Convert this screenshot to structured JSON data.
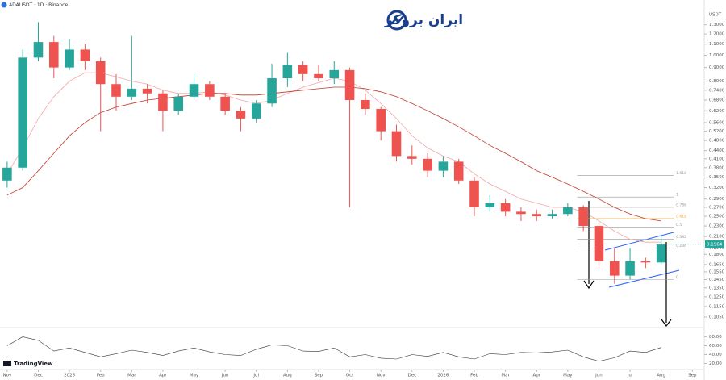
{
  "header": {
    "symbol": "ADAUSDT · 1D · Binance",
    "currency": "USDT",
    "logo": "ایران بروکر",
    "brand": "TradingView"
  },
  "chart_data": {
    "type": "candlestick",
    "x": [
      0,
      0.5,
      1,
      1.5,
      2,
      2.5,
      3,
      3.5,
      4,
      4.5,
      5,
      5.5,
      6,
      6.5,
      7,
      7.5,
      8,
      8.5,
      9,
      9.5,
      10,
      10.5,
      11,
      11.5,
      12,
      12.5,
      13,
      13.5,
      14,
      14.5,
      15,
      15.5,
      16,
      16.5,
      17,
      17.5,
      18,
      18.5,
      19,
      19.5,
      20,
      20.5,
      21
    ],
    "open": [
      0.34,
      0.38,
      0.98,
      1.12,
      0.9,
      1.05,
      0.95,
      0.78,
      0.7,
      0.75,
      0.72,
      0.62,
      0.7,
      0.78,
      0.7,
      0.62,
      0.58,
      0.66,
      0.82,
      0.92,
      0.85,
      0.82,
      0.88,
      0.68,
      0.63,
      0.52,
      0.42,
      0.41,
      0.37,
      0.4,
      0.34,
      0.27,
      0.28,
      0.26,
      0.255,
      0.25,
      0.255,
      0.27,
      0.23,
      0.17,
      0.15,
      0.17,
      0.168
    ],
    "high": [
      0.4,
      1.05,
      1.33,
      1.18,
      1.15,
      1.1,
      0.98,
      0.85,
      1.18,
      0.78,
      0.74,
      0.72,
      0.85,
      0.8,
      0.72,
      0.64,
      0.68,
      0.93,
      1.02,
      0.95,
      0.92,
      0.95,
      0.9,
      0.72,
      0.64,
      0.55,
      0.46,
      0.43,
      0.42,
      0.41,
      0.35,
      0.3,
      0.29,
      0.27,
      0.265,
      0.265,
      0.28,
      0.275,
      0.235,
      0.19,
      0.19,
      0.175,
      0.21
    ],
    "low": [
      0.32,
      0.37,
      0.95,
      0.82,
      0.88,
      0.88,
      0.52,
      0.62,
      0.68,
      0.66,
      0.52,
      0.6,
      0.68,
      0.68,
      0.6,
      0.52,
      0.56,
      0.64,
      0.76,
      0.8,
      0.8,
      0.78,
      0.27,
      0.6,
      0.48,
      0.4,
      0.39,
      0.35,
      0.35,
      0.33,
      0.25,
      0.26,
      0.25,
      0.24,
      0.24,
      0.245,
      0.25,
      0.22,
      0.16,
      0.14,
      0.145,
      0.16,
      0.165
    ],
    "close": [
      0.38,
      0.98,
      1.12,
      0.9,
      1.05,
      0.95,
      0.78,
      0.7,
      0.75,
      0.72,
      0.62,
      0.7,
      0.78,
      0.7,
      0.62,
      0.58,
      0.66,
      0.82,
      0.92,
      0.85,
      0.82,
      0.88,
      0.68,
      0.63,
      0.52,
      0.42,
      0.41,
      0.37,
      0.4,
      0.34,
      0.27,
      0.28,
      0.26,
      0.255,
      0.25,
      0.255,
      0.27,
      0.23,
      0.17,
      0.15,
      0.17,
      0.168,
      0.196
    ],
    "up_color": "#26a69a",
    "down_color": "#ef5350",
    "overlays": [
      {
        "color": "#f4a7a7",
        "values": [
          0.36,
          0.45,
          0.58,
          0.7,
          0.8,
          0.86,
          0.86,
          0.83,
          0.8,
          0.78,
          0.74,
          0.72,
          0.72,
          0.73,
          0.71,
          0.68,
          0.66,
          0.68,
          0.72,
          0.76,
          0.79,
          0.82,
          0.8,
          0.74,
          0.66,
          0.58,
          0.5,
          0.45,
          0.42,
          0.4,
          0.36,
          0.33,
          0.31,
          0.29,
          0.28,
          0.27,
          0.27,
          0.26,
          0.24,
          0.22,
          0.205,
          0.2,
          0.2
        ]
      },
      {
        "color": "#c0392b",
        "values": [
          0.3,
          0.32,
          0.37,
          0.43,
          0.5,
          0.56,
          0.61,
          0.64,
          0.66,
          0.68,
          0.69,
          0.7,
          0.71,
          0.72,
          0.72,
          0.71,
          0.71,
          0.72,
          0.73,
          0.74,
          0.75,
          0.76,
          0.76,
          0.75,
          0.73,
          0.7,
          0.66,
          0.62,
          0.58,
          0.54,
          0.5,
          0.46,
          0.43,
          0.4,
          0.37,
          0.35,
          0.33,
          0.31,
          0.29,
          0.27,
          0.255,
          0.245,
          0.24
        ]
      }
    ],
    "log_scale": true,
    "xlim": [
      -0.23,
      22.2
    ],
    "xticks": [
      {
        "value": 0,
        "label": "Nov"
      },
      {
        "value": 1,
        "label": "Dec"
      },
      {
        "value": 2,
        "label": "2025"
      },
      {
        "value": 3,
        "label": "Feb"
      },
      {
        "value": 4,
        "label": "Mar"
      },
      {
        "value": 5,
        "label": "Apr"
      },
      {
        "value": 6,
        "label": "May"
      },
      {
        "value": 7,
        "label": "Jun"
      },
      {
        "value": 8,
        "label": "Jul"
      },
      {
        "value": 9,
        "label": "Aug"
      },
      {
        "value": 10,
        "label": "Sep"
      },
      {
        "value": 11,
        "label": "Oct"
      },
      {
        "value": 12,
        "label": "Nov"
      },
      {
        "value": 13,
        "label": "Dec"
      },
      {
        "value": 14,
        "label": "2026"
      },
      {
        "value": 15,
        "label": "Feb"
      },
      {
        "value": 16,
        "label": "Mar"
      },
      {
        "value": 17,
        "label": "Apr"
      },
      {
        "value": 18,
        "label": "May"
      },
      {
        "value": 19,
        "label": "Jun"
      },
      {
        "value": 20,
        "label": "Jul"
      },
      {
        "value": 21,
        "label": "Aug"
      },
      {
        "value": 22,
        "label": "Sep"
      }
    ],
    "ylim": [
      0.1,
      1.4
    ],
    "yticks": [
      {
        "value": 1.3,
        "label": "1.3000"
      },
      {
        "value": 1.2,
        "label": "1.2000"
      },
      {
        "value": 1.1,
        "label": "1.1000"
      },
      {
        "value": 1.0,
        "label": "1.0000"
      },
      {
        "value": 0.9,
        "label": "0.9000"
      },
      {
        "value": 0.8,
        "label": "0.8000"
      },
      {
        "value": 0.74,
        "label": "0.7400"
      },
      {
        "value": 0.68,
        "label": "0.6800"
      },
      {
        "value": 0.62,
        "label": "0.6200"
      },
      {
        "value": 0.56,
        "label": "0.5600"
      },
      {
        "value": 0.52,
        "label": "0.5200"
      },
      {
        "value": 0.48,
        "label": "0.4800"
      },
      {
        "value": 0.44,
        "label": "0.4400"
      },
      {
        "value": 0.41,
        "label": "0.4100"
      },
      {
        "value": 0.38,
        "label": "0.3800"
      },
      {
        "value": 0.35,
        "label": "0.3500"
      },
      {
        "value": 0.32,
        "label": "0.3200"
      },
      {
        "value": 0.29,
        "label": "0.2900"
      },
      {
        "value": 0.27,
        "label": "0.2700"
      },
      {
        "value": 0.25,
        "label": "0.2500"
      },
      {
        "value": 0.23,
        "label": "0.2300"
      },
      {
        "value": 0.21,
        "label": "0.2100"
      },
      {
        "value": 0.19,
        "label": "0.1900"
      },
      {
        "value": 0.18,
        "label": "0.1800"
      },
      {
        "value": 0.165,
        "label": "0.1650"
      },
      {
        "value": 0.155,
        "label": "0.1550"
      },
      {
        "value": 0.145,
        "label": "0.1450"
      },
      {
        "value": 0.135,
        "label": "0.1350"
      },
      {
        "value": 0.125,
        "label": "0.1250"
      },
      {
        "value": 0.115,
        "label": "0.1150"
      },
      {
        "value": 0.105,
        "label": "0.1050"
      }
    ],
    "last_price": {
      "value": 0.1964,
      "label": "0.1964",
      "color": "#26a69a"
    },
    "fib": {
      "x": [
        18.3,
        21.4
      ],
      "levels": [
        {
          "value": 0.355,
          "label": "1.618",
          "color": "#999999"
        },
        {
          "value": 0.295,
          "label": "1",
          "color": "#999999"
        },
        {
          "value": 0.27,
          "label": "0.786",
          "color": "#999999"
        },
        {
          "value": 0.245,
          "label": "0.618",
          "color": "#f5a623"
        },
        {
          "value": 0.228,
          "label": "0.5",
          "color": "#999999"
        },
        {
          "value": 0.205,
          "label": "0.382",
          "color": "#999999"
        },
        {
          "value": 0.19,
          "label": "0.236",
          "color": "#999999"
        },
        {
          "value": 0.145,
          "label": "0",
          "color": "#999999"
        }
      ]
    },
    "rsi": {
      "values": [
        60,
        80,
        72,
        48,
        55,
        45,
        35,
        42,
        50,
        45,
        38,
        48,
        55,
        46,
        40,
        38,
        52,
        62,
        60,
        48,
        47,
        55,
        35,
        40,
        32,
        30,
        40,
        36,
        45,
        35,
        30,
        42,
        40,
        45,
        44,
        46,
        50,
        35,
        25,
        33,
        48,
        45,
        56
      ],
      "color": "#333333",
      "ylim": [
        10,
        90
      ],
      "yticks": [
        {
          "value": 80,
          "label": "80.00"
        },
        {
          "value": 60,
          "label": "60.00"
        },
        {
          "value": 40,
          "label": "40.00"
        },
        {
          "value": 20,
          "label": "20.00"
        }
      ]
    }
  }
}
